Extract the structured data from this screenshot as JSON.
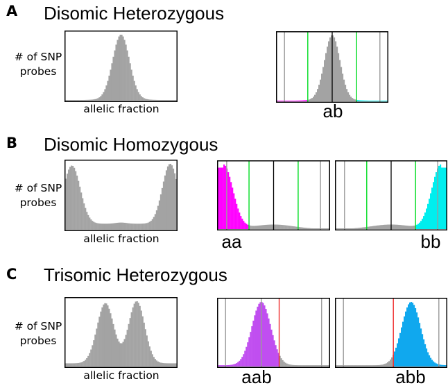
{
  "sections": {
    "A": {
      "letter": "A",
      "title": "Disomic Heterozygous"
    },
    "B": {
      "letter": "B",
      "title": "Disomic Homozygous"
    },
    "C": {
      "letter": "C",
      "title": "Trisomic Heterozygous"
    }
  },
  "axis_labels": {
    "ylabel_line1": "# of SNP",
    "ylabel_line2": "probes",
    "xlabel": "allelic fraction"
  },
  "genotypes": {
    "ab": "ab",
    "aa": "aa",
    "bb": "bb",
    "aab": "aab",
    "abb": "abb"
  },
  "colors": {
    "histogram": "#a3a3a3",
    "magenta": "#ff00ff",
    "cyan": "#00eeee",
    "purple": "#c04ef0",
    "blue": "#10a8ee",
    "green": "#00dd22",
    "red": "#ee2a2a",
    "threshold_gray": "#9a9a9a"
  },
  "chart_data": [
    {
      "id": "A-hist",
      "type": "bar",
      "xlabel": "allelic fraction",
      "ylabel": "# of SNP probes",
      "x_range": [
        0,
        1
      ],
      "distribution": {
        "peaks": [
          0.5
        ],
        "shape": "single symmetric peak"
      }
    },
    {
      "id": "A-ab",
      "type": "bar",
      "genotype_label": "ab",
      "x_range": [
        0,
        1
      ],
      "distribution": {
        "peaks": [
          0.5
        ]
      },
      "vertical_lines": [
        {
          "x": 0.07,
          "color": "gray"
        },
        {
          "x": 0.28,
          "color": "green"
        },
        {
          "x": 0.5,
          "color": "black"
        },
        {
          "x": 0.72,
          "color": "green"
        },
        {
          "x": 0.93,
          "color": "gray"
        }
      ],
      "tail_colors": {
        "left": "magenta",
        "right": "cyan"
      }
    },
    {
      "id": "B-hist",
      "type": "bar",
      "xlabel": "allelic fraction",
      "ylabel": "# of SNP probes",
      "x_range": [
        0,
        1
      ],
      "distribution": {
        "peaks": [
          0.08,
          0.92
        ],
        "shape": "two edge peaks, low U-shaped middle"
      }
    },
    {
      "id": "B-aa",
      "type": "bar",
      "genotype_label": "aa",
      "x_range": [
        0,
        1
      ],
      "distribution": {
        "peaks": [
          0.08
        ]
      },
      "highlight": {
        "region": [
          0,
          0.28
        ],
        "color": "magenta"
      },
      "vertical_lines": [
        {
          "x": 0.08,
          "color": "gray"
        },
        {
          "x": 0.28,
          "color": "green"
        },
        {
          "x": 0.5,
          "color": "black"
        },
        {
          "x": 0.72,
          "color": "green"
        },
        {
          "x": 0.92,
          "color": "gray"
        }
      ]
    },
    {
      "id": "B-bb",
      "type": "bar",
      "genotype_label": "bb",
      "x_range": [
        0,
        1
      ],
      "distribution": {
        "peaks": [
          0.92
        ]
      },
      "highlight": {
        "region": [
          0.72,
          1
        ],
        "color": "cyan"
      },
      "vertical_lines": [
        {
          "x": 0.08,
          "color": "gray"
        },
        {
          "x": 0.28,
          "color": "green"
        },
        {
          "x": 0.5,
          "color": "black"
        },
        {
          "x": 0.72,
          "color": "green"
        },
        {
          "x": 0.92,
          "color": "gray"
        }
      ]
    },
    {
      "id": "C-hist",
      "type": "bar",
      "xlabel": "allelic fraction",
      "ylabel": "# of SNP probes",
      "x_range": [
        0,
        1
      ],
      "distribution": {
        "peaks": [
          0.37,
          0.63
        ],
        "shape": "two central peaks"
      }
    },
    {
      "id": "C-aab",
      "type": "bar",
      "genotype_label": "aab",
      "x_range": [
        0,
        1
      ],
      "distribution": {
        "peaks": [
          0.39
        ]
      },
      "highlight": {
        "region": [
          0,
          0.55
        ],
        "color": "purple"
      },
      "vertical_lines": [
        {
          "x": 0.07,
          "color": "gray"
        },
        {
          "x": 0.39,
          "color": "gray"
        },
        {
          "x": 0.55,
          "color": "red"
        },
        {
          "x": 0.93,
          "color": "gray"
        }
      ]
    },
    {
      "id": "C-abb",
      "type": "bar",
      "genotype_label": "abb",
      "x_range": [
        0,
        1
      ],
      "distribution": {
        "peaks": [
          0.68
        ]
      },
      "highlight": {
        "region": [
          0.52,
          1
        ],
        "color": "blue"
      },
      "vertical_lines": [
        {
          "x": 0.07,
          "color": "gray"
        },
        {
          "x": 0.52,
          "color": "red"
        },
        {
          "x": 0.93,
          "color": "gray"
        }
      ]
    }
  ]
}
